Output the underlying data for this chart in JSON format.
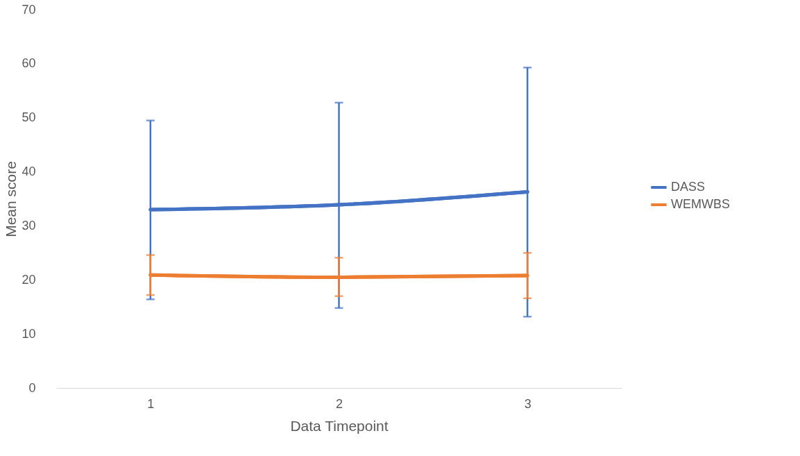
{
  "chart_data": {
    "type": "line",
    "xlabel": "Data Timepoint",
    "ylabel": "Mean score",
    "categories": [
      "1",
      "2",
      "3"
    ],
    "ylim": [
      0,
      70
    ],
    "yticks": [
      0,
      10,
      20,
      30,
      40,
      50,
      60,
      70
    ],
    "grid": false,
    "legend": "right",
    "marker": "none",
    "line_style": "solid",
    "series": [
      {
        "name": "DASS",
        "color": "#4472c4",
        "values": [
          33.0,
          33.9,
          36.3
        ],
        "errors": [
          [
            16.4,
            49.5
          ],
          [
            14.8,
            52.8
          ],
          [
            13.2,
            59.3
          ]
        ]
      },
      {
        "name": "WEMWBS",
        "color": "#ed7d31",
        "values": [
          20.9,
          20.5,
          20.8
        ],
        "errors": [
          [
            17.2,
            24.6
          ],
          [
            17.0,
            24.1
          ],
          [
            16.6,
            25.0
          ]
        ]
      }
    ]
  }
}
